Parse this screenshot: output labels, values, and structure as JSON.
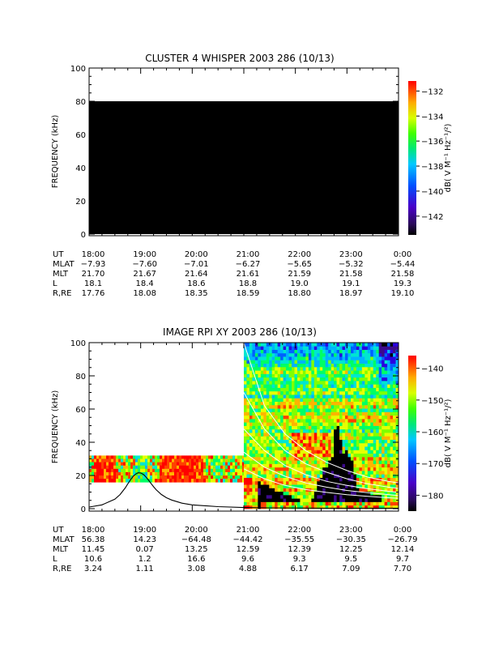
{
  "chart_data": [
    {
      "type": "heatmap",
      "title": "CLUSTER 4 WHISPER 2003 286 (10/13)",
      "ylabel": "FREQUENCY (kHz)",
      "ylim": [
        0,
        100
      ],
      "yticks": [
        "0",
        "20",
        "40",
        "60",
        "80",
        "100"
      ],
      "fill": {
        "color": "#000000",
        "from_time": "18:00",
        "to_time": "0:00",
        "from_freq": 0,
        "to_freq": 80
      },
      "colorbar": {
        "label": "dB( V M⁻¹ Hz⁻¹/²)",
        "min": -143.5,
        "max": -131.2,
        "ticks": [
          -132,
          -134,
          -136,
          -138,
          -140,
          -142
        ]
      },
      "ephemeris": {
        "rows": [
          {
            "label": "UT",
            "values": [
              "18:00",
              "19:00",
              "20:00",
              "21:00",
              "22:00",
              "23:00",
              "0:00"
            ]
          },
          {
            "label": "MLAT",
            "values": [
              "-7.93",
              "-7.60",
              "-7.01",
              "-6.27",
              "-5.65",
              "-5.32",
              "-5.44"
            ]
          },
          {
            "label": "MLT",
            "values": [
              "21.70",
              "21.67",
              "21.64",
              "21.61",
              "21.59",
              "21.58",
              "21.58"
            ]
          },
          {
            "label": "L",
            "values": [
              "18.1",
              "18.4",
              "18.6",
              "18.8",
              "19.0",
              "19.1",
              "19.3"
            ]
          },
          {
            "label": "R,RE",
            "values": [
              "17.76",
              "18.08",
              "18.35",
              "18.59",
              "18.80",
              "18.97",
              "19.10"
            ]
          }
        ]
      }
    },
    {
      "type": "heatmap",
      "title": "IMAGE RPI XY 2003 286 (10/13)",
      "ylabel": "FREQUENCY (kHz)",
      "ylim": [
        0,
        100
      ],
      "yticks": [
        "0",
        "20",
        "40",
        "60",
        "80",
        "100"
      ],
      "colorbar": {
        "label": "dB( V M⁻¹ Hz⁻¹/²)",
        "min": -185,
        "max": -136,
        "ticks": [
          -140,
          -150,
          -160,
          -170,
          -180
        ]
      },
      "low_band": {
        "from_time": "18:00",
        "to_time": "21:00",
        "from_freq": 16,
        "to_freq": 32
      },
      "full_band": {
        "from_time": "21:00",
        "to_time": "0:00",
        "from_freq": 0,
        "to_freq": 100
      },
      "black_curve": {
        "hours": [
          0,
          0.25,
          0.5,
          0.6,
          0.7,
          0.75,
          0.8,
          0.85,
          0.9,
          0.95,
          1.0,
          1.05,
          1.1,
          1.15,
          1.2,
          1.25,
          1.3,
          1.4,
          1.5,
          1.6,
          1.8,
          2.0,
          2.5,
          3.0,
          3.5,
          4.0,
          4.5,
          5.0,
          5.5,
          6.0
        ],
        "freq": [
          1.0,
          2.3,
          5.7,
          8.5,
          12.5,
          15,
          17.2,
          19.3,
          20.8,
          21.6,
          21.5,
          20.7,
          19.2,
          17.3,
          15.2,
          13.2,
          11.4,
          8.6,
          6.6,
          5.2,
          3.3,
          2.3,
          1.2,
          0.7,
          0.5,
          0.4,
          0.3,
          0.3,
          0.3,
          0.3
        ]
      },
      "white_curves": [
        {
          "hours": [
            3.0,
            3.4,
            3.8,
            4.2,
            4.6,
            5.0,
            5.4,
            5.8,
            6.0
          ],
          "freq": [
            100,
            62,
            45,
            35,
            28,
            23,
            19,
            16.5,
            15.5
          ]
        },
        {
          "hours": [
            3.0,
            3.4,
            3.8,
            4.2,
            4.6,
            5.0,
            5.4,
            5.8,
            6.0
          ],
          "freq": [
            70,
            48,
            35,
            27,
            22,
            18,
            15,
            13,
            12.2
          ]
        },
        {
          "hours": [
            3.0,
            3.4,
            3.8,
            4.2,
            4.6,
            5.0,
            5.4,
            5.8,
            6.0
          ],
          "freq": [
            48,
            35,
            26,
            20.5,
            16.5,
            14,
            12,
            10.5,
            9.8
          ]
        },
        {
          "hours": [
            3.0,
            3.4,
            3.8,
            4.2,
            4.6,
            5.0,
            5.4,
            5.8,
            6.0
          ],
          "freq": [
            34,
            25,
            19.5,
            15.5,
            13,
            11,
            9.6,
            8.5,
            7.9
          ]
        },
        {
          "hours": [
            3.0,
            3.4,
            3.8,
            4.2,
            4.6,
            5.0,
            5.4,
            5.8,
            6.0
          ],
          "freq": [
            24,
            18,
            14,
            11.5,
            9.8,
            8.4,
            7.4,
            6.6,
            6.2
          ]
        }
      ],
      "ephemeris": {
        "rows": [
          {
            "label": "UT",
            "values": [
              "18:00",
              "19:00",
              "20:00",
              "21:00",
              "22:00",
              "23:00",
              "0:00"
            ]
          },
          {
            "label": "MLAT",
            "values": [
              "56.38",
              "14.23",
              "-64.48",
              "-44.42",
              "-35.55",
              "-30.35",
              "-26.79"
            ]
          },
          {
            "label": "MLT",
            "values": [
              "11.45",
              "0.07",
              "13.25",
              "12.59",
              "12.39",
              "12.25",
              "12.14"
            ]
          },
          {
            "label": "L",
            "values": [
              "10.6",
              "1.2",
              "16.6",
              "9.6",
              "9.3",
              "9.5",
              "9.7"
            ]
          },
          {
            "label": "R,RE",
            "values": [
              "3.24",
              "1.11",
              "3.08",
              "4.88",
              "6.17",
              "7.09",
              "7.70"
            ]
          }
        ]
      }
    }
  ]
}
